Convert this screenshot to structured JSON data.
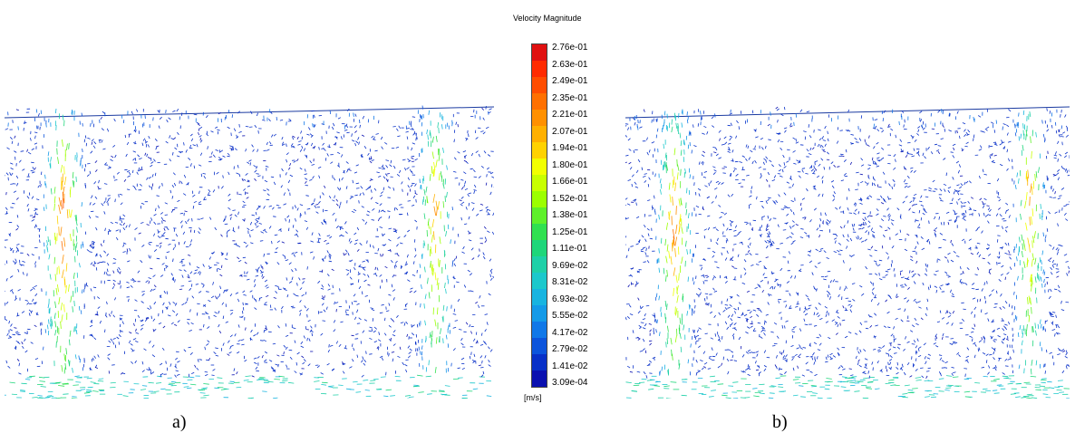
{
  "legend": {
    "title": "Velocity Magnitude",
    "unit": "[m/s]",
    "ticks": [
      "2.76e-01",
      "2.63e-01",
      "2.49e-01",
      "2.35e-01",
      "2.21e-01",
      "2.07e-01",
      "1.94e-01",
      "1.80e-01",
      "1.66e-01",
      "1.52e-01",
      "1.38e-01",
      "1.25e-01",
      "1.11e-01",
      "9.69e-02",
      "8.31e-02",
      "6.93e-02",
      "5.55e-02",
      "4.17e-02",
      "2.79e-02",
      "1.41e-02",
      "3.09e-04"
    ],
    "colors": [
      "#e01010",
      "#ff2a00",
      "#ff4d00",
      "#ff7000",
      "#ff9000",
      "#ffb000",
      "#ffd200",
      "#f2ff00",
      "#c8ff00",
      "#9cff00",
      "#5ef02a",
      "#30e050",
      "#1fd67a",
      "#1fd0a8",
      "#1cc8cc",
      "#18b4e0",
      "#149ae8",
      "#1078e8",
      "#0c54dc",
      "#0830c8",
      "#0a10b0"
    ]
  },
  "panels": [
    {
      "caption": "a)"
    },
    {
      "caption": "b)"
    }
  ]
}
